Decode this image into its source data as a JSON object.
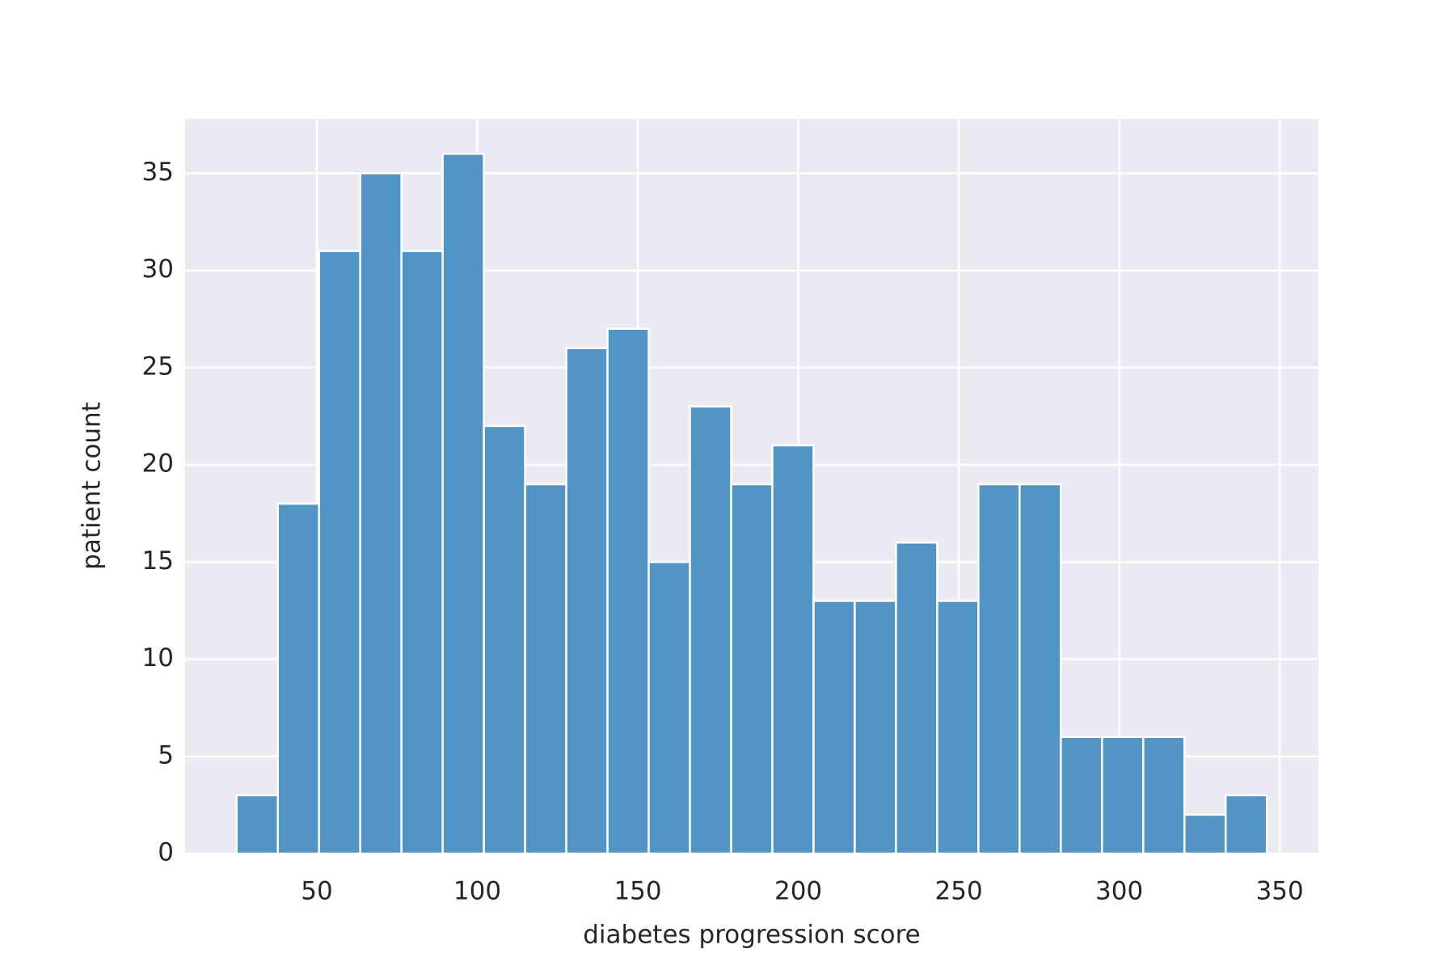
{
  "chart_data": {
    "type": "histogram",
    "xlabel": "diabetes progression score",
    "ylabel": "patient count",
    "bins": [
      25,
      37.84,
      50.68,
      63.52,
      76.36,
      89.2,
      102.04,
      114.88,
      127.72,
      140.56,
      153.4,
      166.24,
      179.08,
      191.92,
      204.76,
      217.6,
      230.44,
      243.28,
      256.12,
      268.96,
      281.8,
      294.64,
      307.48,
      320.32,
      333.16,
      346
    ],
    "values": [
      3,
      18,
      31,
      35,
      31,
      36,
      22,
      19,
      26,
      27,
      15,
      23,
      19,
      21,
      13,
      13,
      16,
      13,
      19,
      19,
      6,
      6,
      6,
      2,
      3
    ],
    "color": "#5294c4",
    "xlim": [
      8.95,
      362.05
    ],
    "ylim": [
      0,
      37.8
    ],
    "xticks": [
      50,
      100,
      150,
      200,
      250,
      300,
      350
    ],
    "yticks": [
      0,
      5,
      10,
      15,
      20,
      25,
      30,
      35
    ],
    "grid": true
  }
}
